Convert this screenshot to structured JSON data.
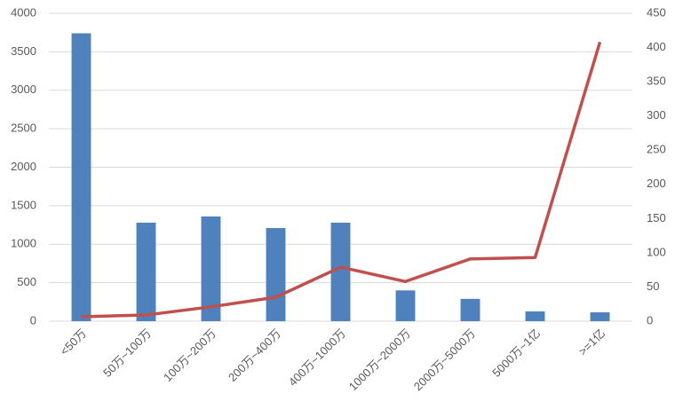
{
  "chart_data": {
    "type": "bar-line",
    "categories": [
      "<50万",
      "50万~100万",
      "100万~200万",
      "200万~400万",
      "400万~1000万",
      "1000万~2000万",
      "2000万~5000万",
      "5000万~1亿",
      ">=1亿"
    ],
    "series": [
      {
        "type": "bar",
        "color": "#4f81bd",
        "values": [
          3740,
          1280,
          1360,
          1210,
          1280,
          400,
          290,
          127,
          115
        ]
      },
      {
        "type": "line",
        "axis": "y2",
        "color": "#c0504d",
        "values": [
          6.5,
          9,
          21,
          35,
          79,
          58,
          91,
          93,
          408
        ]
      }
    ],
    "ylim": [
      0,
      4000
    ],
    "yticks": [
      0,
      500,
      1000,
      1500,
      2000,
      2500,
      3000,
      3500,
      4000
    ],
    "y2lim": [
      0,
      450
    ],
    "y2ticks": [
      0,
      50,
      100,
      150,
      200,
      250,
      300,
      350,
      400,
      450
    ],
    "grid": true
  }
}
